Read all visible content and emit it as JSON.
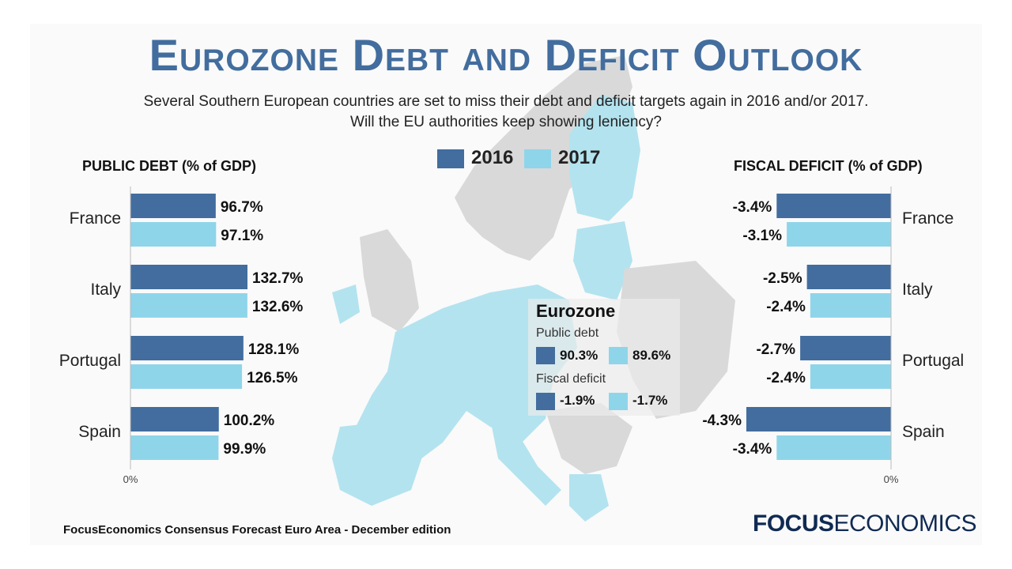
{
  "title": "Eurozone Debt and Deficit Outlook",
  "subtitle_line1": "Several Southern European countries are set to miss their debt and deficit targets again in 2016 and/or 2017.",
  "subtitle_line2": "Will the EU authorities keep showing leniency?",
  "colors": {
    "series_2016": "#426d9e",
    "series_2017": "#8fd5ea"
  },
  "legend": [
    {
      "label": "2016",
      "color": "#426d9e"
    },
    {
      "label": "2017",
      "color": "#8fd5ea"
    }
  ],
  "chart_data": [
    {
      "type": "bar",
      "orientation": "horizontal",
      "title": "PUBLIC DEBT (% of GDP)",
      "categories": [
        "France",
        "Italy",
        "Portugal",
        "Spain"
      ],
      "series": [
        {
          "name": "2016",
          "values": [
            96.7,
            132.7,
            128.1,
            100.2
          ],
          "labels": [
            "96.7%",
            "132.7%",
            "128.1%",
            "100.2%"
          ]
        },
        {
          "name": "2017",
          "values": [
            97.1,
            132.6,
            126.5,
            99.9
          ],
          "labels": [
            "97.1%",
            "132.6%",
            "126.5%",
            "99.9%"
          ]
        }
      ],
      "axis_zero_label": "0%",
      "xlim": [
        0,
        150
      ]
    },
    {
      "type": "bar",
      "orientation": "horizontal",
      "title": "FISCAL DEFICIT (% of GDP)",
      "categories": [
        "France",
        "Italy",
        "Portugal",
        "Spain"
      ],
      "series": [
        {
          "name": "2016",
          "values": [
            -3.4,
            -2.5,
            -2.7,
            -4.3
          ],
          "labels": [
            "-3.4%",
            "-2.5%",
            "-2.7%",
            "-4.3%"
          ]
        },
        {
          "name": "2017",
          "values": [
            -3.1,
            -2.4,
            -2.4,
            -3.4
          ],
          "labels": [
            "-3.1%",
            "-2.4%",
            "-2.4%",
            "-3.4%"
          ]
        }
      ],
      "axis_zero_label": "0%",
      "xlim": [
        -5,
        0
      ]
    }
  ],
  "eurozone": {
    "title": "Eurozone",
    "public_debt": {
      "label": "Public debt",
      "values": [
        "90.3%",
        "89.6%"
      ]
    },
    "fiscal_deficit": {
      "label": "Fiscal deficit",
      "values": [
        "-1.9%",
        "-1.7%"
      ]
    }
  },
  "source": "FocusEconomics Consensus Forecast Euro Area - December edition",
  "logo": {
    "bold": "FOCUS",
    "light": "ECONOMICS"
  }
}
